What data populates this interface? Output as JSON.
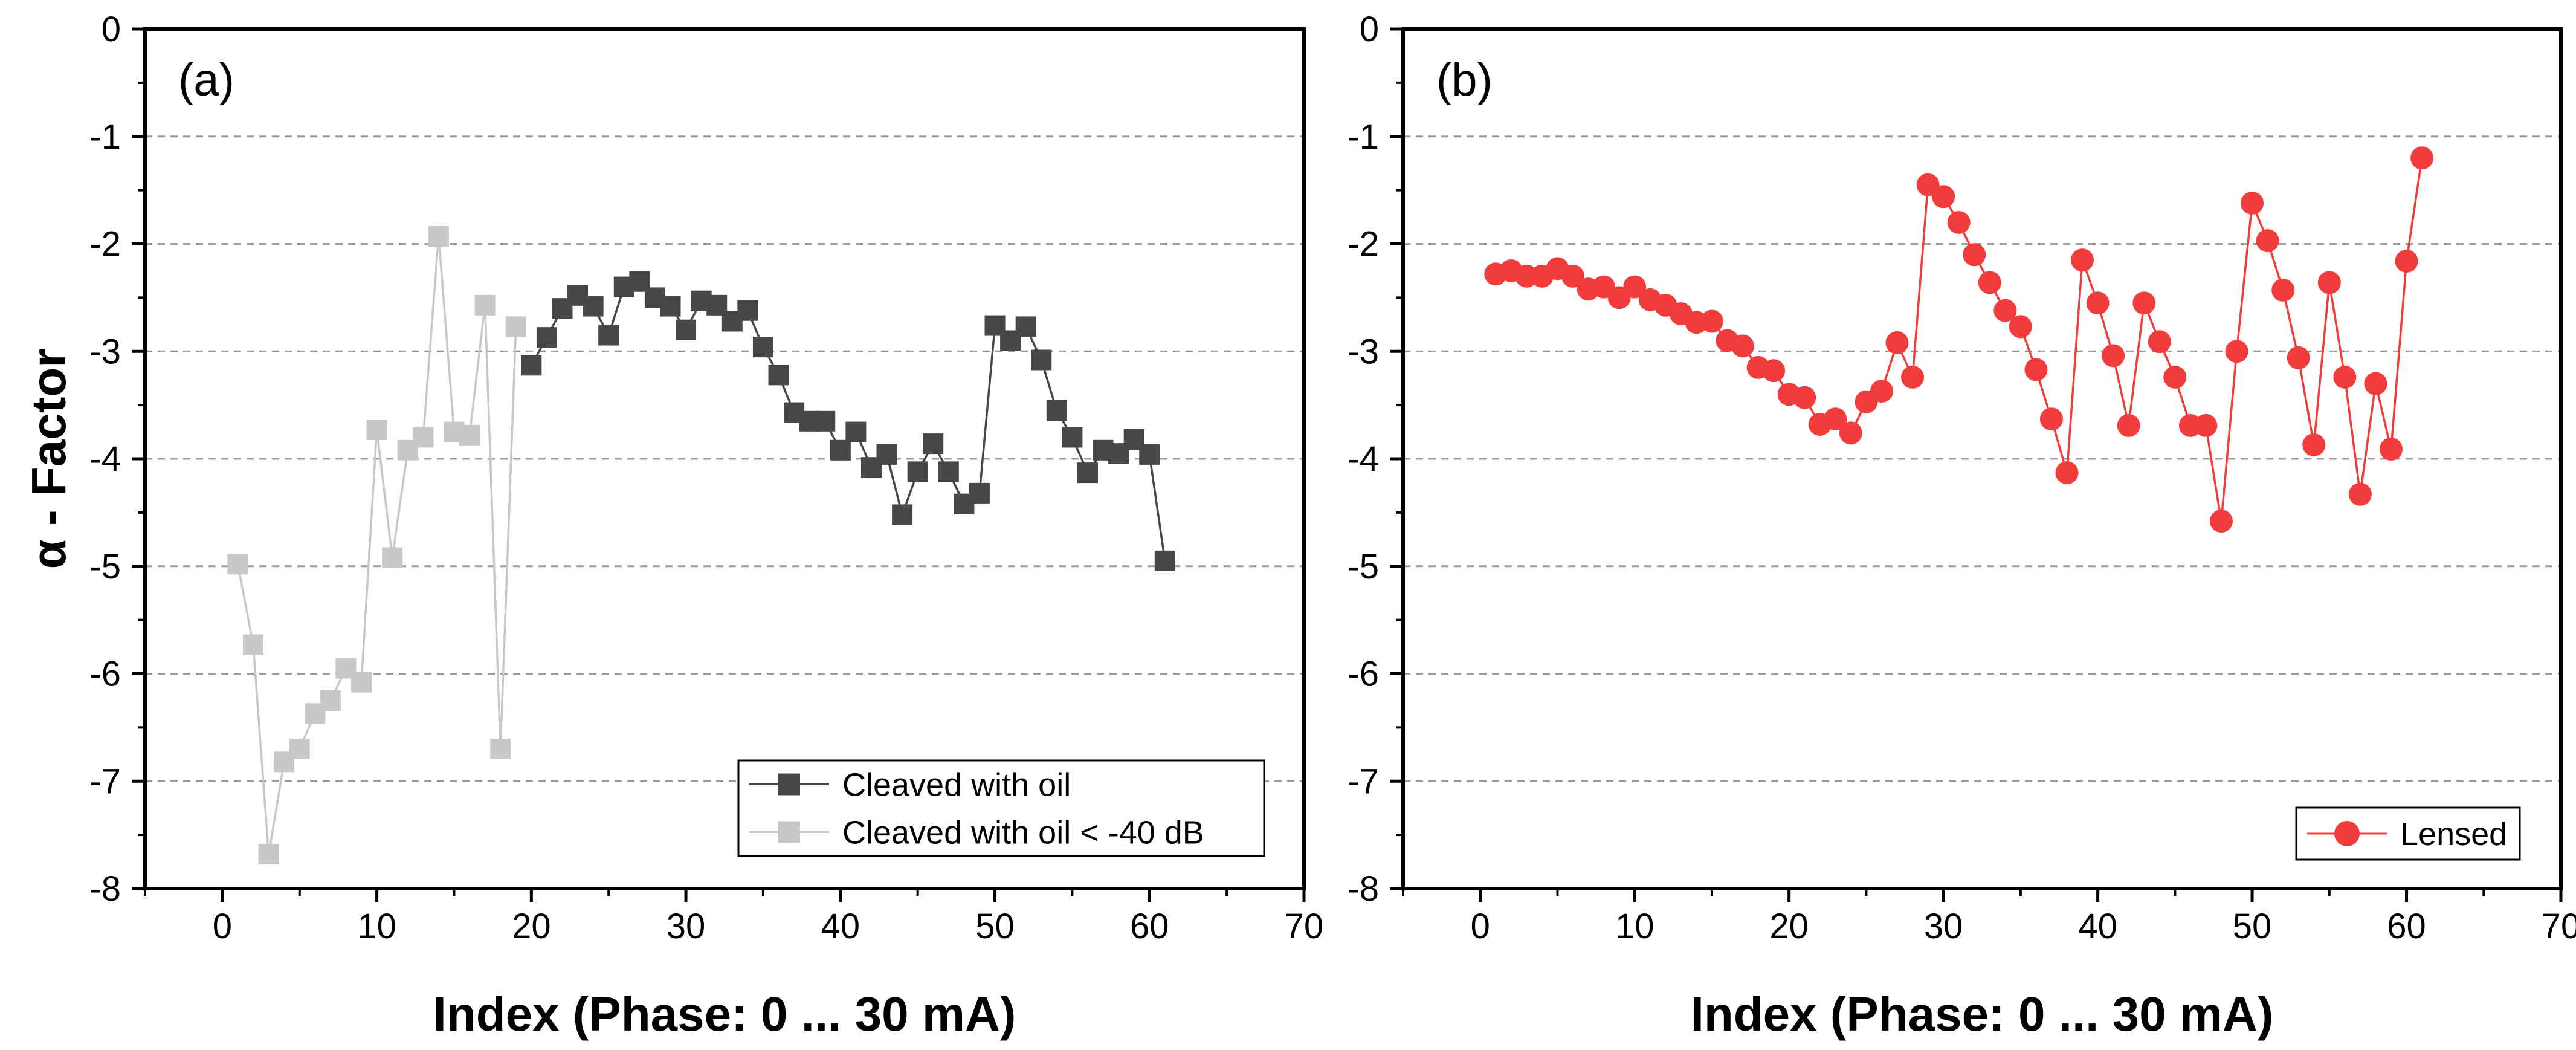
{
  "chart_data": [
    {
      "type": "line",
      "panel_label": "(a)",
      "xlabel": "Index (Phase: 0 ... 30 mA)",
      "ylabel": "α - Factor",
      "xlim": [
        -5,
        70
      ],
      "ylim": [
        -8,
        0
      ],
      "xticks": [
        0,
        10,
        20,
        30,
        40,
        50,
        60,
        70
      ],
      "yticks": [
        0,
        -1,
        -2,
        -3,
        -4,
        -5,
        -6,
        -7,
        -8
      ],
      "grid": "horizontal dashed",
      "legend_position": "bottom-right",
      "series": [
        {
          "name": "Cleaved with oil",
          "color": "#474747",
          "marker": "square",
          "x": [
            20,
            21,
            22,
            23,
            24,
            25,
            26,
            27,
            28,
            29,
            30,
            31,
            32,
            33,
            34,
            35,
            36,
            37,
            38,
            39,
            40,
            41,
            42,
            43,
            44,
            45,
            46,
            47,
            48,
            49,
            50,
            51,
            52,
            53,
            54,
            55,
            56,
            57,
            58,
            59,
            60,
            61
          ],
          "y": [
            -3.13,
            -2.87,
            -2.6,
            -2.48,
            -2.58,
            -2.85,
            -2.4,
            -2.35,
            -2.5,
            -2.58,
            -2.8,
            -2.53,
            -2.57,
            -2.72,
            -2.62,
            -2.96,
            -3.22,
            -3.57,
            -3.65,
            -3.65,
            -3.92,
            -3.75,
            -4.08,
            -3.96,
            -4.52,
            -4.12,
            -3.86,
            -4.12,
            -4.42,
            -4.32,
            -2.76,
            -2.9,
            -2.77,
            -3.08,
            -3.55,
            -3.8,
            -4.13,
            -3.92,
            -3.95,
            -3.82,
            -3.96,
            -4.95
          ]
        },
        {
          "name": "Cleaved with oil < -40 dB",
          "color": "#c8c8c8",
          "marker": "square",
          "x": [
            1,
            2,
            3,
            4,
            5,
            6,
            7,
            8,
            9,
            10,
            11,
            12,
            13,
            14,
            15,
            16,
            17,
            18,
            19
          ],
          "y": [
            -4.98,
            -5.73,
            -7.68,
            -6.82,
            -6.7,
            -6.37,
            -6.25,
            -5.95,
            -6.08,
            -3.73,
            -4.92,
            -3.92,
            -3.8,
            -1.93,
            -3.75,
            -3.78,
            -2.57,
            -6.7,
            -2.77
          ]
        }
      ]
    },
    {
      "type": "line",
      "panel_label": "(b)",
      "xlabel": "Index (Phase: 0 ... 30 mA)",
      "ylabel": "",
      "xlim": [
        -5,
        70
      ],
      "ylim": [
        -8,
        0
      ],
      "xticks": [
        0,
        10,
        20,
        30,
        40,
        50,
        60,
        70
      ],
      "yticks": [
        0,
        -1,
        -2,
        -3,
        -4,
        -5,
        -6,
        -7,
        -8
      ],
      "grid": "horizontal dashed",
      "legend_position": "bottom-right",
      "series": [
        {
          "name": "Lensed",
          "color": "#f23c3c",
          "marker": "circle",
          "x": [
            1,
            2,
            3,
            4,
            5,
            6,
            7,
            8,
            9,
            10,
            11,
            12,
            13,
            14,
            15,
            16,
            17,
            18,
            19,
            20,
            21,
            22,
            23,
            24,
            25,
            26,
            27,
            28,
            29,
            30,
            31,
            32,
            33,
            34,
            35,
            36,
            37,
            38,
            39,
            40,
            41,
            42,
            43,
            44,
            45,
            46,
            47,
            48,
            49,
            50,
            51,
            52,
            53,
            54,
            55,
            56,
            57,
            58,
            59,
            60,
            61
          ],
          "y": [
            -2.28,
            -2.25,
            -2.3,
            -2.3,
            -2.23,
            -2.3,
            -2.42,
            -2.4,
            -2.5,
            -2.4,
            -2.52,
            -2.57,
            -2.65,
            -2.73,
            -2.72,
            -2.9,
            -2.95,
            -3.15,
            -3.18,
            -3.4,
            -3.43,
            -3.68,
            -3.63,
            -3.76,
            -3.47,
            -3.37,
            -2.92,
            -3.24,
            -1.45,
            -1.56,
            -1.8,
            -2.1,
            -2.36,
            -2.62,
            -2.77,
            -3.17,
            -3.63,
            -4.13,
            -2.15,
            -2.55,
            -3.04,
            -3.69,
            -2.55,
            -2.91,
            -3.24,
            -3.69,
            -3.69,
            -4.58,
            -3.0,
            -1.62,
            -1.97,
            -2.43,
            -3.06,
            -3.87,
            -2.36,
            -3.24,
            -4.33,
            -3.3,
            -3.91,
            -2.16,
            -1.2
          ]
        }
      ]
    }
  ]
}
